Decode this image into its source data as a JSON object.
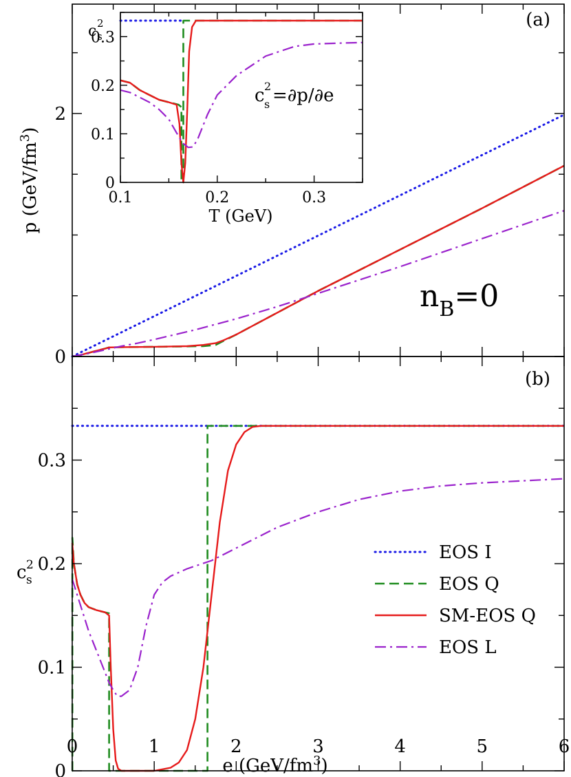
{
  "chart_data": [
    {
      "panel_label": "(a)",
      "type": "line",
      "xlabel": "",
      "ylabel_main": "p (GeV/fm",
      "ylabel_sup": "3",
      "ylabel_close": ")",
      "xlim": [
        0,
        6
      ],
      "ylim": [
        0,
        2.9
      ],
      "y_ticks": [
        "0",
        "2"
      ],
      "annotation": {
        "main": "n",
        "sub": "B",
        "rest": "=0"
      },
      "series": [
        {
          "key": "eos_i",
          "x": [
            0,
            6
          ],
          "y": [
            0,
            1.99
          ]
        },
        {
          "key": "eos_q",
          "x": [
            0,
            0.1,
            0.2,
            0.3,
            0.4,
            0.45,
            0.6,
            1.0,
            1.4,
            1.6,
            1.75,
            1.85,
            2.0,
            2.5,
            3.0,
            4.0,
            5.0,
            6.0
          ],
          "y": [
            0,
            0.012,
            0.03,
            0.048,
            0.065,
            0.075,
            0.077,
            0.08,
            0.083,
            0.085,
            0.095,
            0.13,
            0.18,
            0.36,
            0.54,
            0.88,
            1.22,
            1.57
          ]
        },
        {
          "key": "sm_eos_q",
          "x": [
            0,
            0.1,
            0.2,
            0.3,
            0.4,
            0.45,
            0.6,
            1.0,
            1.4,
            1.6,
            1.75,
            1.85,
            2.0,
            2.5,
            3.0,
            4.0,
            5.0,
            6.0
          ],
          "y": [
            0,
            0.012,
            0.03,
            0.048,
            0.065,
            0.075,
            0.077,
            0.08,
            0.085,
            0.095,
            0.11,
            0.135,
            0.18,
            0.36,
            0.54,
            0.88,
            1.22,
            1.57
          ]
        },
        {
          "key": "eos_l",
          "x": [
            0,
            0.2,
            0.4,
            0.6,
            0.8,
            1.0,
            1.5,
            2.0,
            2.5,
            3.0,
            3.5,
            4.0,
            5.0,
            6.0
          ],
          "y": [
            0,
            0.025,
            0.055,
            0.085,
            0.11,
            0.14,
            0.22,
            0.31,
            0.41,
            0.52,
            0.63,
            0.74,
            0.97,
            1.2
          ]
        }
      ]
    },
    {
      "panel_label": "(b)",
      "type": "line",
      "xlabel_main": "e (GeV/fm",
      "xlabel_sup": "3",
      "xlabel_close": ")",
      "ylabel_main": "c",
      "ylabel_sup": "2",
      "ylabel_sub": "s",
      "xlim": [
        0,
        6
      ],
      "ylim": [
        0,
        0.4
      ],
      "x_ticks": [
        "0",
        "1",
        "2",
        "3",
        "4",
        "5",
        "6"
      ],
      "y_ticks": [
        "0",
        "0.1",
        "0.2",
        "0.3"
      ],
      "legend_position": "bottom-right",
      "legend": [
        {
          "key": "eos_i",
          "label": "EOS I"
        },
        {
          "key": "eos_q",
          "label": "EOS Q"
        },
        {
          "key": "sm_eos_q",
          "label": "SM-EOS Q"
        },
        {
          "key": "eos_l",
          "label": "EOS L"
        }
      ],
      "series": [
        {
          "key": "eos_i",
          "x": [
            0,
            6
          ],
          "y": [
            0.333,
            0.333
          ]
        },
        {
          "key": "eos_q",
          "x": [
            0,
            0.002,
            0.002,
            0.02,
            0.06,
            0.1,
            0.15,
            0.2,
            0.3,
            0.4,
            0.45,
            0.45,
            0.45,
            1.65,
            1.65,
            6
          ],
          "y": [
            0,
            0,
            0.225,
            0.2,
            0.18,
            0.17,
            0.162,
            0.158,
            0.155,
            0.153,
            0.152,
            0.15,
            0,
            0,
            0.333,
            0.333
          ]
        },
        {
          "key": "sm_eos_q",
          "x": [
            0,
            0.02,
            0.06,
            0.1,
            0.15,
            0.2,
            0.3,
            0.4,
            0.45,
            0.47,
            0.5,
            0.53,
            0.56,
            0.6,
            0.8,
            1.0,
            1.2,
            1.3,
            1.4,
            1.5,
            1.6,
            1.7,
            1.8,
            1.9,
            2.0,
            2.1,
            2.2,
            2.3,
            6
          ],
          "y": [
            0.22,
            0.2,
            0.18,
            0.17,
            0.162,
            0.158,
            0.155,
            0.153,
            0.15,
            0.1,
            0.04,
            0.01,
            0.002,
            0,
            0,
            0,
            0.003,
            0.008,
            0.02,
            0.05,
            0.1,
            0.17,
            0.24,
            0.29,
            0.315,
            0.327,
            0.332,
            0.333,
            0.333
          ]
        },
        {
          "key": "eos_l",
          "x": [
            0,
            0.1,
            0.2,
            0.3,
            0.4,
            0.45,
            0.5,
            0.55,
            0.6,
            0.7,
            0.8,
            0.9,
            1.0,
            1.1,
            1.2,
            1.4,
            1.7,
            2.0,
            2.5,
            3.0,
            3.5,
            4.0,
            4.5,
            5.0,
            5.5,
            6.0
          ],
          "y": [
            0.185,
            0.16,
            0.135,
            0.115,
            0.095,
            0.085,
            0.078,
            0.072,
            0.072,
            0.078,
            0.1,
            0.14,
            0.17,
            0.182,
            0.188,
            0.195,
            0.203,
            0.215,
            0.235,
            0.25,
            0.262,
            0.27,
            0.275,
            0.278,
            0.28,
            0.282
          ]
        }
      ]
    },
    {
      "panel_label": "inset",
      "type": "line",
      "xlabel": "T (GeV)",
      "ylabel_main": "c",
      "ylabel_sup": "2",
      "ylabel_sub": "s",
      "annotation": {
        "c": "c",
        "sup": "2",
        "sub": "s",
        "rest": " =∂p/∂e"
      },
      "xlim": [
        0.1,
        0.35
      ],
      "ylim": [
        0,
        0.35
      ],
      "x_ticks": [
        "0.1",
        "0.2",
        "0.3"
      ],
      "y_ticks": [
        "0",
        "0.1",
        "0.2",
        "0.3"
      ],
      "series": [
        {
          "key": "eos_i",
          "x": [
            0.1,
            0.165
          ],
          "y": [
            0.333,
            0.333
          ]
        },
        {
          "key": "eos_q",
          "x": [
            0.1,
            0.11,
            0.12,
            0.13,
            0.14,
            0.15,
            0.16,
            0.163,
            0.163,
            0.165,
            0.165,
            0.35
          ],
          "y": [
            0.21,
            0.205,
            0.19,
            0.18,
            0.17,
            0.165,
            0.16,
            0.155,
            0,
            0,
            0.333,
            0.333
          ]
        },
        {
          "key": "sm_eos_q",
          "x": [
            0.1,
            0.11,
            0.12,
            0.13,
            0.14,
            0.15,
            0.158,
            0.161,
            0.163,
            0.165,
            0.167,
            0.169,
            0.171,
            0.174,
            0.178,
            0.35
          ],
          "y": [
            0.21,
            0.205,
            0.19,
            0.18,
            0.17,
            0.165,
            0.16,
            0.12,
            0.04,
            0.0,
            0.04,
            0.15,
            0.27,
            0.32,
            0.333,
            0.333
          ]
        },
        {
          "key": "eos_l",
          "x": [
            0.1,
            0.11,
            0.12,
            0.13,
            0.14,
            0.15,
            0.16,
            0.165,
            0.17,
            0.175,
            0.18,
            0.19,
            0.2,
            0.22,
            0.25,
            0.28,
            0.3,
            0.33,
            0.35
          ],
          "y": [
            0.19,
            0.185,
            0.175,
            0.165,
            0.15,
            0.13,
            0.095,
            0.08,
            0.072,
            0.073,
            0.09,
            0.14,
            0.18,
            0.22,
            0.26,
            0.28,
            0.285,
            0.287,
            0.288
          ]
        }
      ]
    }
  ],
  "series_style": {
    "eos_i": {
      "color": "#1a1ae6",
      "dash": "1.2,6",
      "width": 3
    },
    "eos_q": {
      "color": "#1f8c1f",
      "dash": "14,7",
      "width": 2.6
    },
    "sm_eos_q": {
      "color": "#e61a1a",
      "dash": "",
      "width": 2.4
    },
    "eos_l": {
      "color": "#9a22cc",
      "dash": "16,6,3,6",
      "width": 2.2
    }
  }
}
